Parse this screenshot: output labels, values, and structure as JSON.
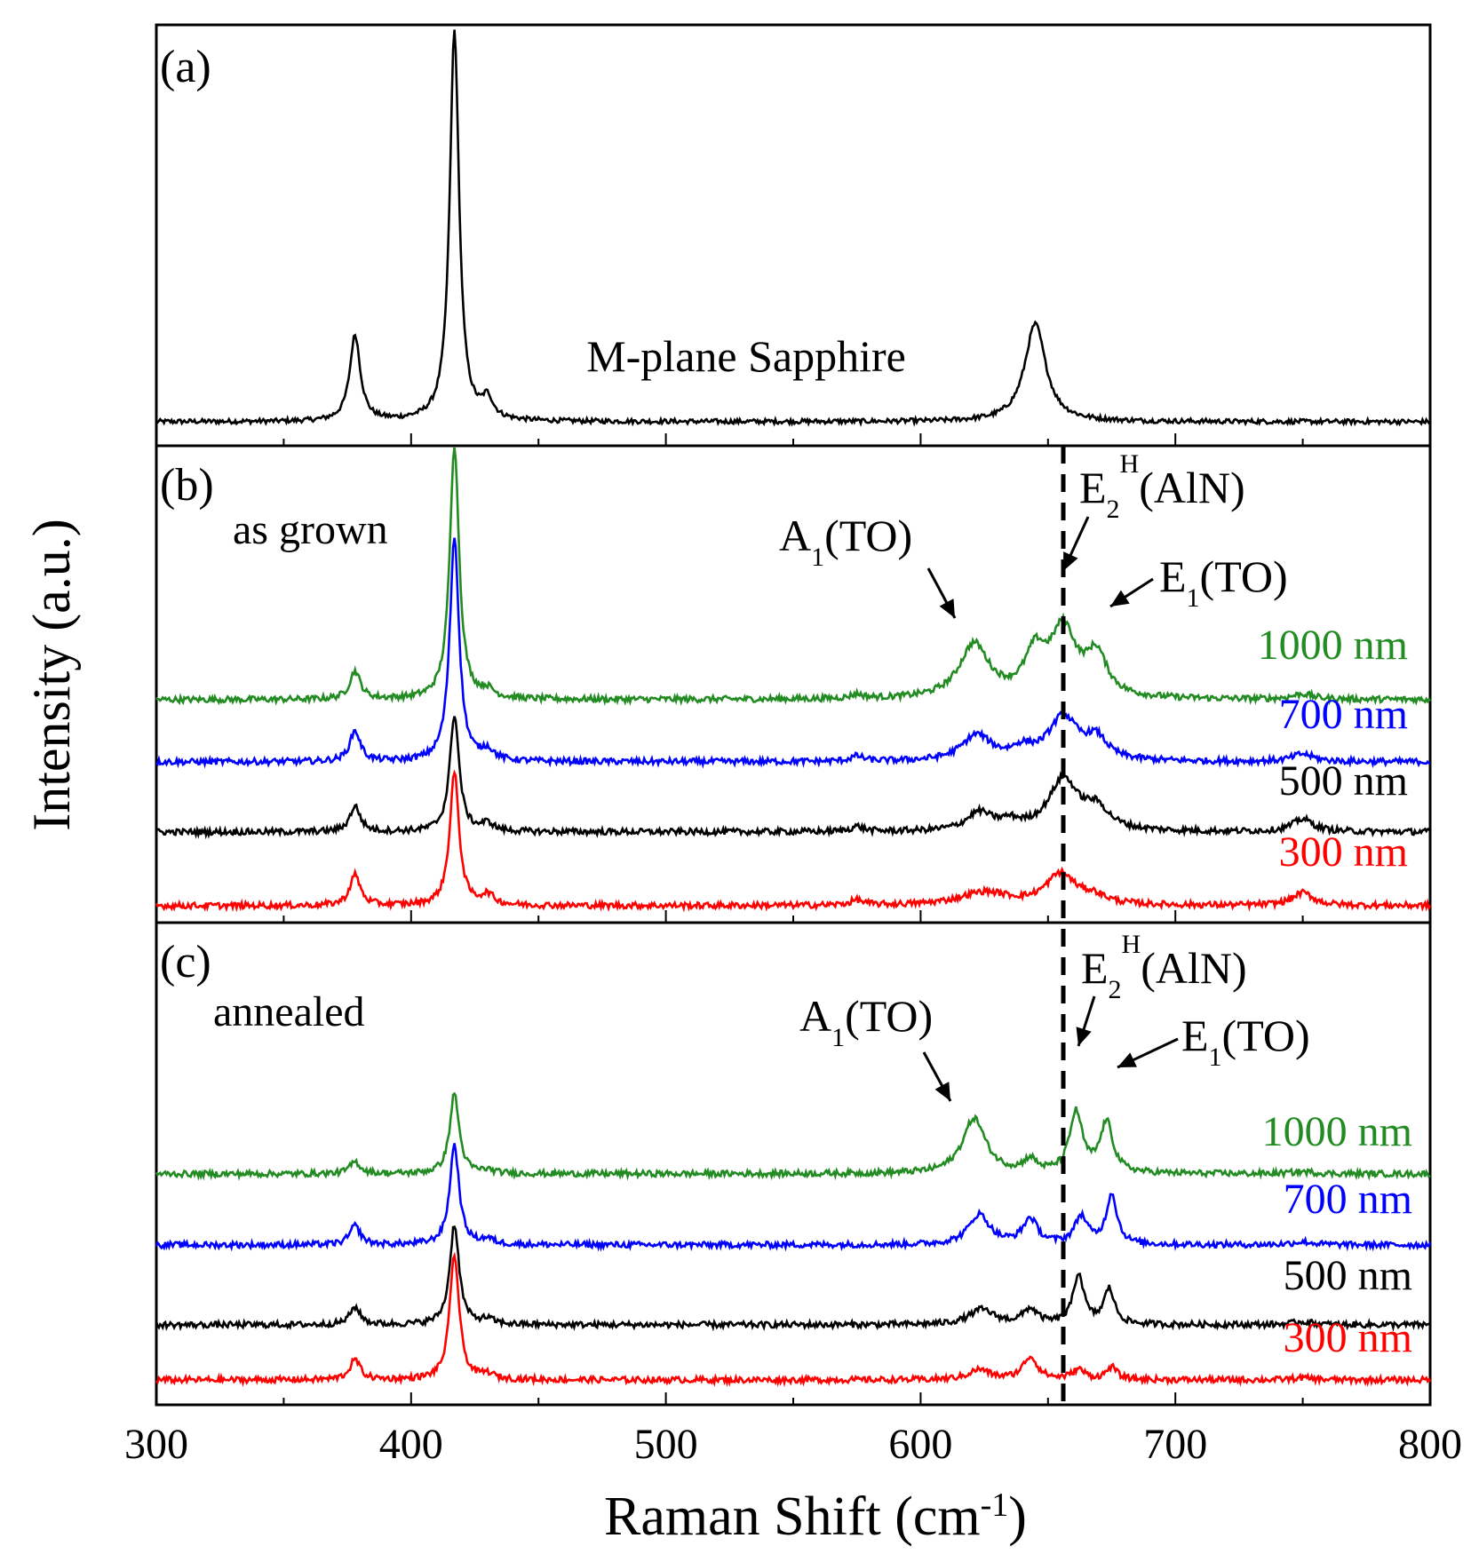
{
  "chart_data": {
    "type": "line",
    "xlabel": "Raman Shift (cm",
    "xlabel_sup": "-1",
    "xlabel_close": ")",
    "ylabel": "Intensity (a.u.)",
    "xlim": [
      300,
      800
    ],
    "xticks": [
      "300",
      "400",
      "500",
      "600",
      "700",
      "800"
    ],
    "reference_line_x": 656,
    "panels": [
      {
        "id": "a",
        "tag": "(a)",
        "annotation": "M-plane Sapphire",
        "series": [
          {
            "color": "#000000",
            "peaks": [
              [
                378,
                0.22,
                2.5
              ],
              [
                417,
                1.0,
                2.2
              ],
              [
                430,
                0.05,
                2.5
              ],
              [
                645,
                0.25,
                5
              ]
            ]
          }
        ]
      },
      {
        "id": "b",
        "tag": "(b)",
        "note": "as grown",
        "labels": {
          "a1": {
            "main": "A",
            "sub": "1",
            "rest": "(TO)"
          },
          "e2": {
            "main": "E",
            "sub": "2",
            "sup": "H",
            "rest": "(AlN)"
          },
          "e1": {
            "main": "E",
            "sub": "1",
            "rest": "(TO)"
          }
        },
        "series": [
          {
            "name": "1000 nm",
            "color": "#228b22",
            "peaks": [
              [
                378,
                0.055,
                2.5
              ],
              [
                417,
                0.5,
                2.2
              ],
              [
                430,
                0.015,
                3
              ],
              [
                575,
                0.008,
                3
              ],
              [
                621,
                0.105,
                7
              ],
              [
                645,
                0.08,
                5
              ],
              [
                656,
                0.13,
                6
              ],
              [
                669,
                0.08,
                5
              ],
              [
                750,
                0.01,
                5
              ]
            ]
          },
          {
            "name": "700 nm",
            "color": "#0000ff",
            "peaks": [
              [
                378,
                0.06,
                2.5
              ],
              [
                417,
                0.44,
                2.2
              ],
              [
                430,
                0.02,
                3
              ],
              [
                575,
                0.01,
                3
              ],
              [
                622,
                0.05,
                7
              ],
              [
                640,
                0.02,
                5
              ],
              [
                656,
                0.085,
                7
              ],
              [
                669,
                0.04,
                5
              ],
              [
                750,
                0.015,
                5
              ]
            ]
          },
          {
            "name": "500 nm",
            "color": "#000000",
            "peaks": [
              [
                378,
                0.05,
                2.5
              ],
              [
                417,
                0.23,
                2.2
              ],
              [
                430,
                0.015,
                3
              ],
              [
                575,
                0.01,
                3
              ],
              [
                623,
                0.035,
                6
              ],
              [
                635,
                0.015,
                5
              ],
              [
                656,
                0.1,
                7
              ],
              [
                669,
                0.04,
                6
              ],
              [
                750,
                0.025,
                5
              ]
            ]
          },
          {
            "name": "300 nm",
            "color": "#ff0000",
            "peaks": [
              [
                378,
                0.06,
                2.5
              ],
              [
                417,
                0.26,
                2.2
              ],
              [
                430,
                0.02,
                3
              ],
              [
                575,
                0.01,
                3
              ],
              [
                625,
                0.025,
                12
              ],
              [
                655,
                0.06,
                7
              ],
              [
                668,
                0.015,
                6
              ],
              [
                750,
                0.025,
                5
              ]
            ]
          }
        ]
      },
      {
        "id": "c",
        "tag": "(c)",
        "note": "annealed",
        "labels": {
          "a1": {
            "main": "A",
            "sub": "1",
            "rest": "(TO)"
          },
          "e2": {
            "main": "E",
            "sub": "2",
            "sup": "H",
            "rest": "(AlN)"
          },
          "e1": {
            "main": "E",
            "sub": "1",
            "rest": "(TO)"
          }
        },
        "series": [
          {
            "name": "1000 nm",
            "color": "#228b22",
            "peaks": [
              [
                378,
                0.024,
                2.5
              ],
              [
                417,
                0.16,
                2.2
              ],
              [
                430,
                0.006,
                3
              ],
              [
                621,
                0.11,
                5.5
              ],
              [
                643,
                0.025,
                3
              ],
              [
                661,
                0.12,
                3
              ],
              [
                673,
                0.1,
                3
              ],
              [
                750,
                0.004,
                5
              ]
            ]
          },
          {
            "name": "700 nm",
            "color": "#0000ff",
            "peaks": [
              [
                378,
                0.038,
                2.5
              ],
              [
                417,
                0.2,
                2.2
              ],
              [
                430,
                0.01,
                3
              ],
              [
                623,
                0.06,
                5
              ],
              [
                643,
                0.05,
                3.5
              ],
              [
                663,
                0.055,
                3
              ],
              [
                675,
                0.1,
                2.5
              ],
              [
                750,
                0.006,
                5
              ]
            ]
          },
          {
            "name": "500 nm",
            "color": "#000000",
            "peaks": [
              [
                378,
                0.035,
                2.5
              ],
              [
                417,
                0.2,
                2.2
              ],
              [
                430,
                0.01,
                3
              ],
              [
                624,
                0.03,
                6
              ],
              [
                643,
                0.03,
                3.5
              ],
              [
                662,
                0.1,
                2.5
              ],
              [
                674,
                0.07,
                2.5
              ],
              [
                750,
                0.006,
                5
              ]
            ]
          },
          {
            "name": "300 nm",
            "color": "#ff0000",
            "peaks": [
              [
                378,
                0.04,
                2.5
              ],
              [
                417,
                0.25,
                2.2
              ],
              [
                430,
                0.01,
                3
              ],
              [
                623,
                0.02,
                5
              ],
              [
                643,
                0.045,
                3.5
              ],
              [
                662,
                0.02,
                3
              ],
              [
                675,
                0.025,
                2.5
              ],
              [
                750,
                0.004,
                5
              ]
            ]
          }
        ]
      }
    ]
  }
}
